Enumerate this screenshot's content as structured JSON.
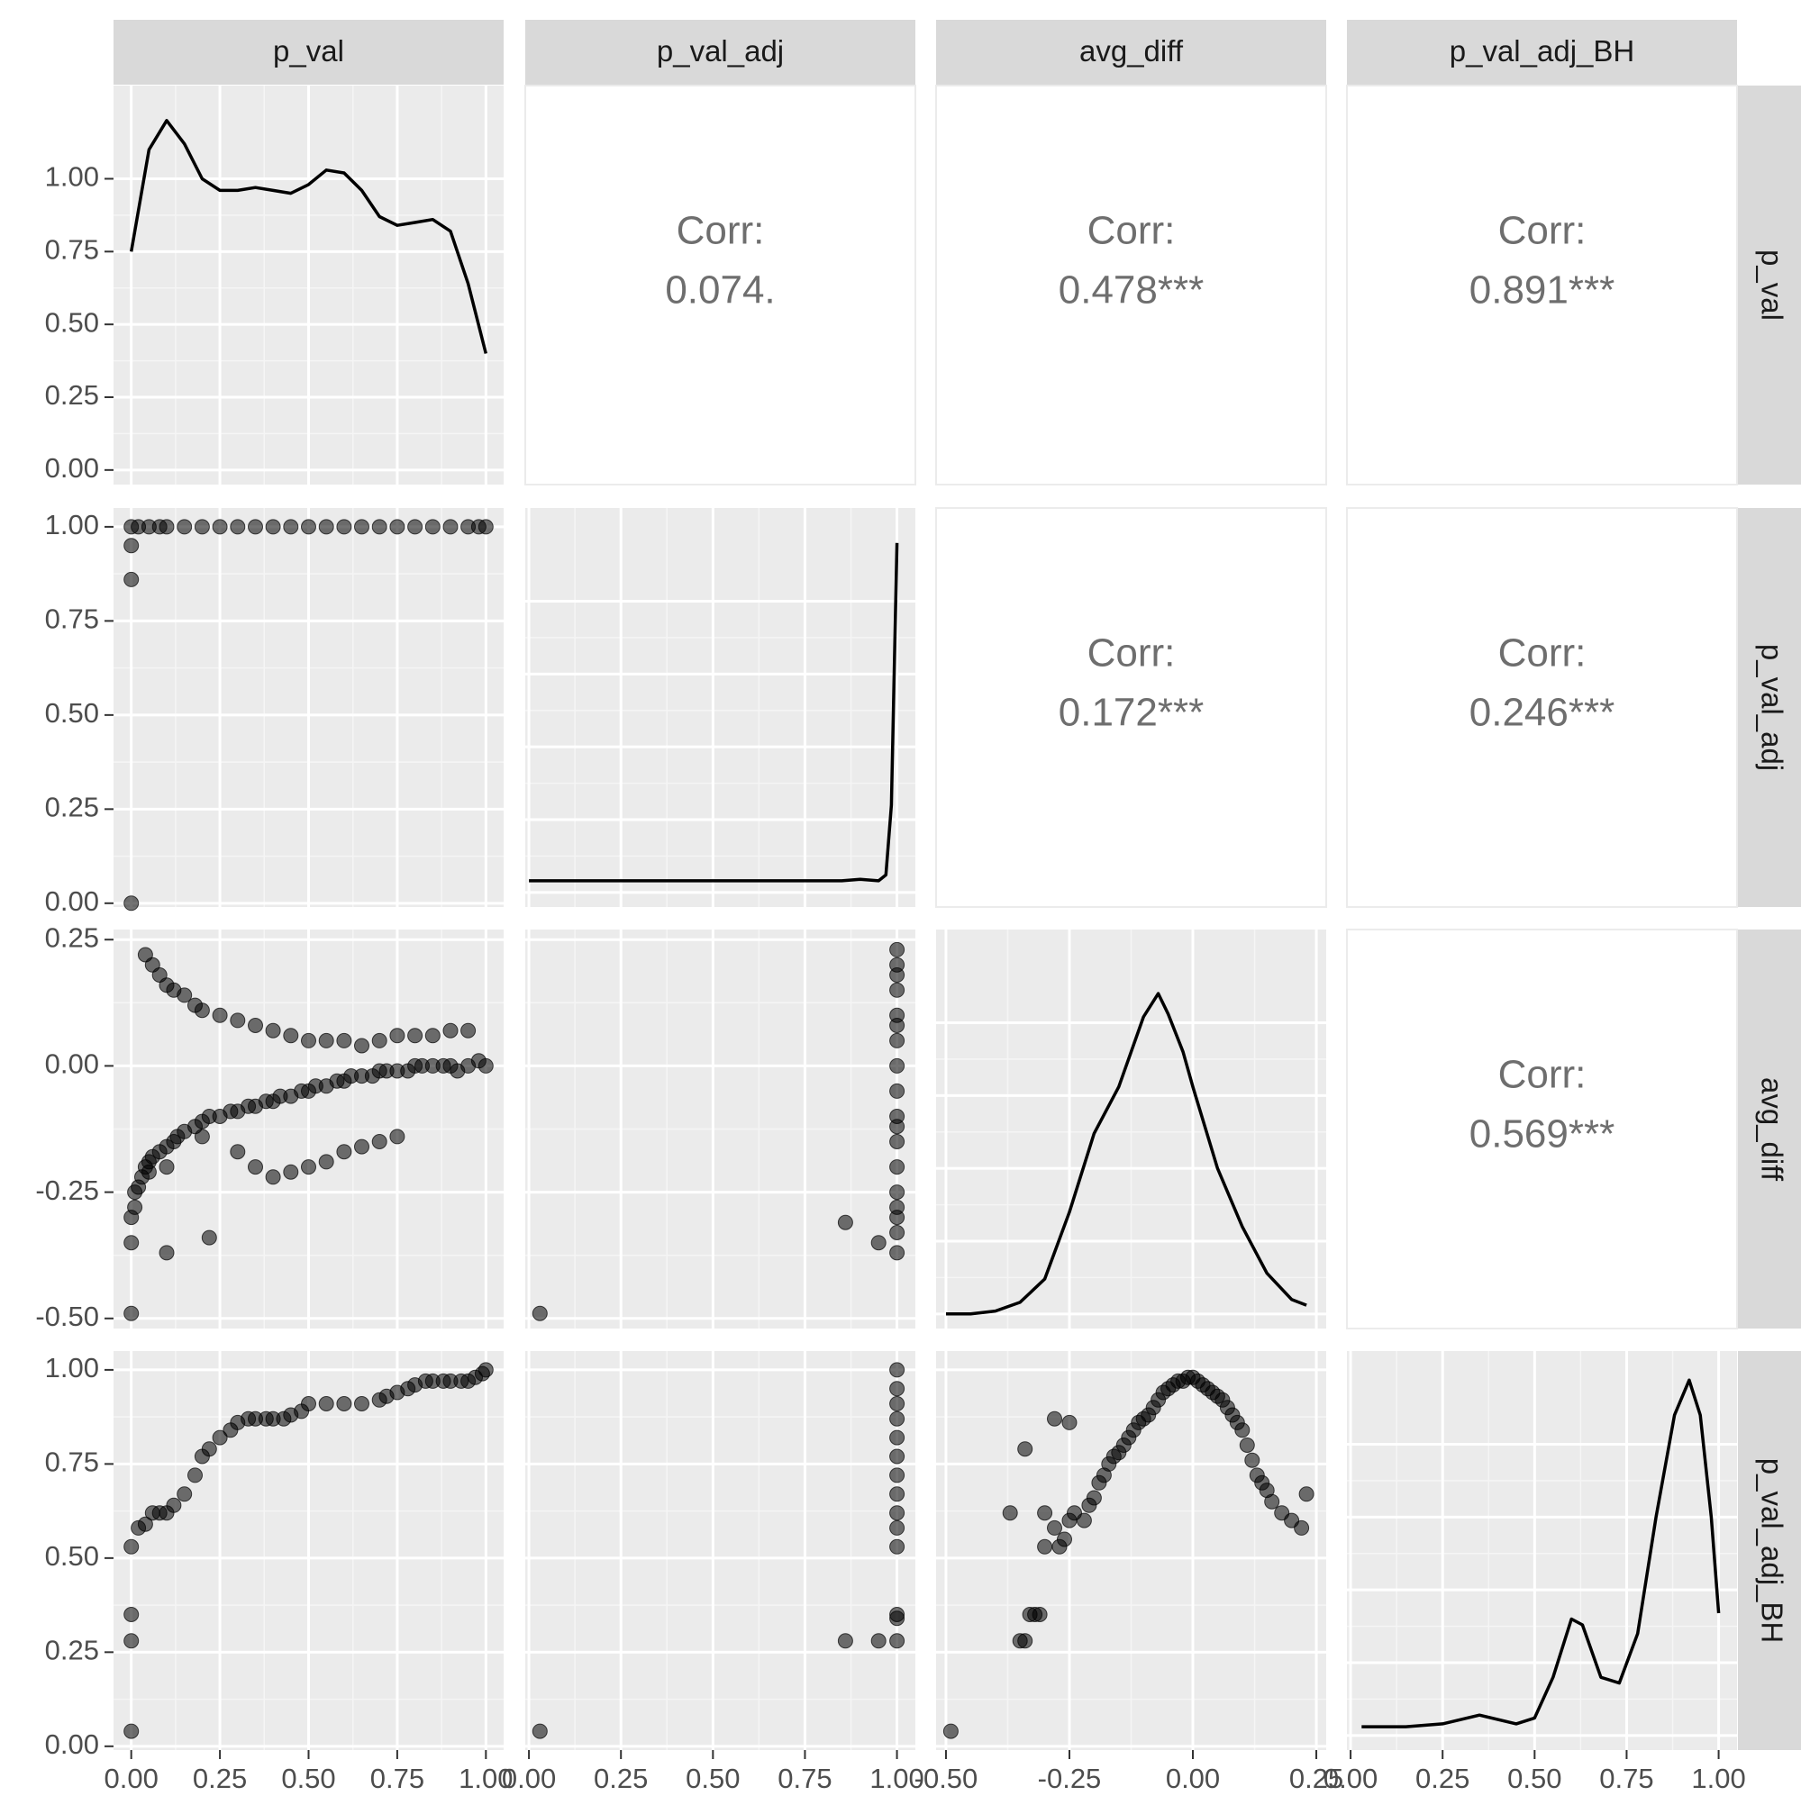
{
  "chart_data": {
    "type": "scatter",
    "title": "",
    "variables": [
      "p_val",
      "p_val_adj",
      "avg_diff",
      "p_val_adj_BH"
    ],
    "axes": {
      "p_val": {
        "range": [
          -0.05,
          1.05
        ],
        "ticks": [
          "0.00",
          "0.25",
          "0.50",
          "0.75",
          "1.00"
        ]
      },
      "p_val_adj": {
        "range": [
          -0.01,
          1.05
        ],
        "ticks": [
          "0.00",
          "0.25",
          "0.50",
          "0.75",
          "1.00"
        ]
      },
      "avg_diff": {
        "range": [
          -0.52,
          0.27
        ],
        "ticks": [
          "-0.50",
          "-0.25",
          "0.00",
          "0.25"
        ]
      },
      "p_val_adj_BH": {
        "range": [
          -0.01,
          1.05
        ],
        "ticks": [
          "0.00",
          "0.25",
          "0.50",
          "0.75",
          "1.00"
        ]
      }
    },
    "diag_y_axis": {
      "range": [
        -0.05,
        1.32
      ],
      "ticks": [
        "0.00",
        "0.25",
        "0.50",
        "0.75",
        "1.00"
      ]
    },
    "correlations": [
      {
        "row": "p_val",
        "col": "p_val_adj",
        "label": "Corr:",
        "value": "0.074."
      },
      {
        "row": "p_val",
        "col": "avg_diff",
        "label": "Corr:",
        "value": "0.478***"
      },
      {
        "row": "p_val",
        "col": "p_val_adj_BH",
        "label": "Corr:",
        "value": "0.891***"
      },
      {
        "row": "p_val_adj",
        "col": "avg_diff",
        "label": "Corr:",
        "value": "0.172***"
      },
      {
        "row": "p_val_adj",
        "col": "p_val_adj_BH",
        "label": "Corr:",
        "value": "0.246***"
      },
      {
        "row": "avg_diff",
        "col": "p_val_adj_BH",
        "label": "Corr:",
        "value": "0.569***"
      }
    ],
    "densities": {
      "p_val": {
        "x": [
          0.0,
          0.05,
          0.1,
          0.15,
          0.2,
          0.25,
          0.3,
          0.35,
          0.4,
          0.45,
          0.5,
          0.55,
          0.6,
          0.65,
          0.7,
          0.75,
          0.8,
          0.85,
          0.9,
          0.95,
          1.0
        ],
        "y": [
          0.75,
          1.1,
          1.2,
          1.12,
          1.0,
          0.96,
          0.96,
          0.97,
          0.96,
          0.95,
          0.98,
          1.03,
          1.02,
          0.96,
          0.87,
          0.84,
          0.85,
          0.86,
          0.82,
          0.64,
          0.4
        ]
      },
      "p_val_adj": {
        "x": [
          0.0,
          0.2,
          0.4,
          0.6,
          0.8,
          0.85,
          0.9,
          0.95,
          0.97,
          0.985,
          0.995,
          1.0
        ],
        "y": [
          0.04,
          0.04,
          0.04,
          0.04,
          0.04,
          0.04,
          0.045,
          0.04,
          0.06,
          0.3,
          0.9,
          1.2
        ]
      },
      "avg_diff": {
        "x": [
          -0.5,
          -0.45,
          -0.4,
          -0.35,
          -0.3,
          -0.25,
          -0.2,
          -0.15,
          -0.1,
          -0.07,
          -0.05,
          -0.02,
          0.0,
          0.05,
          0.1,
          0.15,
          0.2,
          0.23
        ],
        "y": [
          0.0,
          0.0,
          0.01,
          0.04,
          0.12,
          0.35,
          0.62,
          0.78,
          1.02,
          1.1,
          1.03,
          0.9,
          0.78,
          0.5,
          0.3,
          0.14,
          0.05,
          0.03
        ]
      },
      "p_val_adj_BH": {
        "x": [
          0.03,
          0.15,
          0.25,
          0.35,
          0.45,
          0.5,
          0.55,
          0.6,
          0.63,
          0.68,
          0.73,
          0.78,
          0.83,
          0.88,
          0.92,
          0.95,
          0.98,
          1.0
        ],
        "y": [
          0.03,
          0.03,
          0.04,
          0.07,
          0.04,
          0.06,
          0.2,
          0.4,
          0.38,
          0.2,
          0.18,
          0.35,
          0.75,
          1.1,
          1.22,
          1.1,
          0.75,
          0.42
        ]
      }
    },
    "scatter": {
      "p_val__p_val_adj": {
        "x": [
          0.0,
          0.0,
          0.0,
          0.0,
          0.02,
          0.05,
          0.08,
          0.1,
          0.15,
          0.2,
          0.25,
          0.3,
          0.35,
          0.4,
          0.45,
          0.5,
          0.55,
          0.6,
          0.65,
          0.7,
          0.75,
          0.8,
          0.85,
          0.9,
          0.95,
          0.98,
          1.0
        ],
        "y": [
          0.0,
          0.86,
          0.95,
          1.0,
          1.0,
          1.0,
          1.0,
          1.0,
          1.0,
          1.0,
          1.0,
          1.0,
          1.0,
          1.0,
          1.0,
          1.0,
          1.0,
          1.0,
          1.0,
          1.0,
          1.0,
          1.0,
          1.0,
          1.0,
          1.0,
          1.0,
          1.0
        ]
      },
      "p_val__avg_diff": {
        "x": [
          0.0,
          0.0,
          0.01,
          0.01,
          0.02,
          0.03,
          0.04,
          0.05,
          0.06,
          0.05,
          0.08,
          0.1,
          0.12,
          0.1,
          0.13,
          0.15,
          0.18,
          0.2,
          0.22,
          0.25,
          0.28,
          0.3,
          0.33,
          0.35,
          0.38,
          0.4,
          0.42,
          0.45,
          0.48,
          0.5,
          0.52,
          0.55,
          0.58,
          0.6,
          0.62,
          0.65,
          0.68,
          0.7,
          0.72,
          0.75,
          0.78,
          0.8,
          0.82,
          0.85,
          0.88,
          0.9,
          0.92,
          0.95,
          0.98,
          1.0,
          0.04,
          0.06,
          0.08,
          0.1,
          0.12,
          0.15,
          0.18,
          0.2,
          0.25,
          0.3,
          0.35,
          0.4,
          0.45,
          0.5,
          0.55,
          0.6,
          0.65,
          0.7,
          0.75,
          0.8,
          0.85,
          0.9,
          0.95,
          0.2,
          0.3,
          0.35,
          0.4,
          0.45,
          0.5,
          0.55,
          0.6,
          0.65,
          0.7,
          0.75,
          0.1,
          0.22,
          0.0
        ],
        "y": [
          -0.35,
          -0.3,
          -0.28,
          -0.25,
          -0.24,
          -0.22,
          -0.2,
          -0.19,
          -0.18,
          -0.21,
          -0.17,
          -0.16,
          -0.15,
          -0.2,
          -0.14,
          -0.13,
          -0.12,
          -0.11,
          -0.1,
          -0.1,
          -0.09,
          -0.09,
          -0.08,
          -0.08,
          -0.07,
          -0.07,
          -0.06,
          -0.06,
          -0.05,
          -0.05,
          -0.04,
          -0.04,
          -0.03,
          -0.03,
          -0.02,
          -0.02,
          -0.02,
          -0.01,
          -0.01,
          -0.01,
          -0.01,
          0.0,
          0.0,
          0.0,
          0.0,
          0.0,
          -0.01,
          0.0,
          0.01,
          0.0,
          0.22,
          0.2,
          0.18,
          0.16,
          0.15,
          0.14,
          0.12,
          0.11,
          0.1,
          0.09,
          0.08,
          0.07,
          0.06,
          0.05,
          0.05,
          0.05,
          0.04,
          0.05,
          0.06,
          0.06,
          0.06,
          0.07,
          0.07,
          -0.14,
          -0.17,
          -0.2,
          -0.22,
          -0.21,
          -0.2,
          -0.19,
          -0.17,
          -0.16,
          -0.15,
          -0.14,
          -0.37,
          -0.34,
          -0.49
        ]
      },
      "p_val__p_val_adj_BH": {
        "x": [
          0.0,
          0.0,
          0.0,
          0.0,
          0.02,
          0.04,
          0.06,
          0.08,
          0.1,
          0.12,
          0.15,
          0.18,
          0.2,
          0.22,
          0.25,
          0.28,
          0.3,
          0.33,
          0.35,
          0.38,
          0.4,
          0.43,
          0.45,
          0.48,
          0.5,
          0.55,
          0.6,
          0.65,
          0.7,
          0.72,
          0.75,
          0.78,
          0.8,
          0.83,
          0.85,
          0.88,
          0.9,
          0.93,
          0.95,
          0.97,
          0.99,
          1.0
        ],
        "y": [
          0.04,
          0.28,
          0.35,
          0.53,
          0.58,
          0.59,
          0.62,
          0.62,
          0.62,
          0.64,
          0.67,
          0.72,
          0.77,
          0.79,
          0.82,
          0.84,
          0.86,
          0.87,
          0.87,
          0.87,
          0.87,
          0.87,
          0.88,
          0.89,
          0.91,
          0.91,
          0.91,
          0.91,
          0.92,
          0.93,
          0.94,
          0.95,
          0.96,
          0.97,
          0.97,
          0.97,
          0.97,
          0.97,
          0.97,
          0.98,
          0.99,
          1.0
        ]
      },
      "p_val_adj__avg_diff": {
        "x": [
          0.03,
          0.86,
          0.95,
          1.0,
          1.0,
          1.0,
          1.0,
          1.0,
          1.0,
          1.0,
          1.0,
          1.0,
          1.0,
          1.0,
          1.0,
          1.0,
          1.0,
          1.0,
          1.0,
          1.0,
          1.0
        ],
        "y": [
          -0.49,
          -0.31,
          -0.35,
          -0.37,
          -0.33,
          -0.3,
          -0.25,
          -0.2,
          -0.15,
          -0.1,
          -0.05,
          0.0,
          0.05,
          0.1,
          0.15,
          0.2,
          0.23,
          -0.28,
          -0.12,
          0.08,
          0.18
        ]
      },
      "p_val_adj__p_val_adj_BH": {
        "x": [
          0.03,
          0.86,
          0.95,
          1.0,
          1.0,
          1.0,
          1.0,
          1.0,
          1.0,
          1.0,
          1.0,
          1.0,
          1.0,
          1.0,
          1.0,
          1.0,
          1.0
        ],
        "y": [
          0.04,
          0.28,
          0.28,
          0.28,
          0.34,
          0.35,
          0.53,
          0.58,
          0.62,
          0.67,
          0.72,
          0.77,
          0.82,
          0.87,
          0.91,
          0.95,
          1.0
        ]
      },
      "avg_diff__p_val_adj_BH": {
        "x": [
          -0.49,
          -0.37,
          -0.35,
          -0.34,
          -0.33,
          -0.32,
          -0.31,
          -0.3,
          -0.3,
          -0.28,
          -0.27,
          -0.26,
          -0.25,
          -0.24,
          -0.22,
          -0.21,
          -0.2,
          -0.19,
          -0.18,
          -0.17,
          -0.16,
          -0.15,
          -0.14,
          -0.13,
          -0.12,
          -0.11,
          -0.1,
          -0.09,
          -0.08,
          -0.07,
          -0.06,
          -0.05,
          -0.04,
          -0.03,
          -0.02,
          -0.01,
          0.0,
          0.01,
          0.02,
          0.03,
          0.04,
          0.05,
          0.06,
          0.07,
          0.08,
          0.09,
          0.1,
          0.11,
          0.12,
          0.13,
          0.14,
          0.15,
          0.16,
          0.18,
          0.2,
          0.22,
          0.23,
          -0.34,
          -0.28,
          -0.25
        ],
        "y": [
          0.04,
          0.62,
          0.28,
          0.28,
          0.35,
          0.35,
          0.35,
          0.53,
          0.62,
          0.58,
          0.53,
          0.55,
          0.6,
          0.62,
          0.6,
          0.64,
          0.66,
          0.7,
          0.72,
          0.75,
          0.77,
          0.78,
          0.8,
          0.82,
          0.84,
          0.86,
          0.87,
          0.88,
          0.9,
          0.92,
          0.94,
          0.95,
          0.96,
          0.97,
          0.97,
          0.98,
          0.98,
          0.97,
          0.96,
          0.95,
          0.94,
          0.93,
          0.92,
          0.9,
          0.88,
          0.86,
          0.84,
          0.8,
          0.76,
          0.72,
          0.7,
          0.68,
          0.65,
          0.62,
          0.6,
          0.58,
          0.67,
          0.79,
          0.87,
          0.86
        ]
      }
    },
    "grid": true
  }
}
